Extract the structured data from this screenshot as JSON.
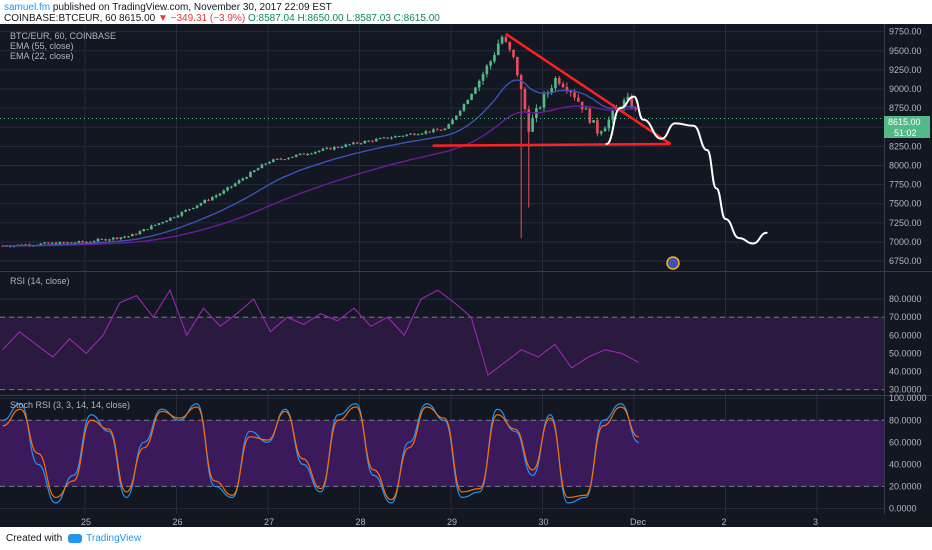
{
  "header": {
    "author": "samuel.fm",
    "published": " published on TradingView.com, November 30, 2017 22:09 EST",
    "symbol": "COINBASE:BTCEUR, 60",
    "last": "8615.00",
    "change": "▼ −349.31 (−3.9%)",
    "ohlc": {
      "o": "O:8587.04",
      "h": "H:8650.00",
      "l": "L:8587.03",
      "c": "C:8615.00"
    }
  },
  "legend": {
    "symbol": "BTC/EUR, 60, COINBASE",
    "ema55": "EMA (55, close)",
    "ema22": "EMA (22, close)",
    "rsi": "RSI (14, close)",
    "stoch": "Stoch RSI (3, 3, 14, 14, close)"
  },
  "footer": {
    "created": "Created with",
    "brand": "TradingView"
  },
  "colors": {
    "background": "#131722",
    "grid": "#262b3e",
    "up": "#53b987",
    "down": "#eb4d5c",
    "ema55": "#6a1b9a",
    "ema22": "#3f51b5",
    "rsi_line": "#9c27b0",
    "rsi_fill": "#2a1a3e",
    "stoch_k": "#2196f3",
    "stoch_d": "#ff6d00",
    "stoch_fill": "#3b1a5c",
    "trendline": "#ff2020",
    "drawing": "#ffffff",
    "price_badge": "#53b987"
  },
  "chart_data": [
    {
      "type": "candlestick",
      "title": "BTC/EUR, 60, COINBASE",
      "x_axis_ticks": [
        "25",
        "26",
        "27",
        "28",
        "29",
        "30",
        "Dec",
        "2",
        "3"
      ],
      "y_axis_ticks": [
        6750,
        7000,
        7250,
        7500,
        7750,
        8000,
        8250,
        8500,
        8750,
        9000,
        9250,
        9500,
        9750
      ],
      "ylim": [
        6620,
        9850
      ],
      "last_price_label": "8615.00",
      "countdown_label": "51:02",
      "dotted_price_level": 8615,
      "key_prices": {
        "start_24th": 6950,
        "close_27th": 8050,
        "close_28th": 8350,
        "peak_29th": 9700,
        "wick_low_29th": 7050,
        "close_30th": 8615
      },
      "indicators": [
        "EMA (55, close)",
        "EMA (22, close)"
      ],
      "annotations": [
        {
          "type": "descending-triangle",
          "upper_line": [
            [
              29.6,
              9720
            ],
            [
              31.4,
              8280
            ]
          ],
          "support": 8260
        },
        {
          "type": "freehand-projection",
          "end_price": 6970
        }
      ]
    },
    {
      "type": "line",
      "title": "RSI (14, close)",
      "y_axis_ticks": [
        30,
        40,
        50,
        60,
        70,
        80
      ],
      "ylim": [
        27,
        95
      ],
      "levels": [
        30,
        70
      ],
      "approx_values": [
        52,
        62,
        55,
        48,
        58,
        50,
        60,
        78,
        82,
        70,
        85,
        60,
        75,
        65,
        72,
        80,
        62,
        70,
        66,
        72,
        68,
        75,
        65,
        70,
        60,
        80,
        85,
        78,
        70,
        38,
        45,
        52,
        48,
        55,
        42,
        48,
        52,
        50,
        45
      ]
    },
    {
      "type": "line",
      "title": "Stoch RSI (3, 3, 14, 14, close)",
      "y_axis_ticks": [
        0,
        20,
        40,
        60,
        80,
        100
      ],
      "ylim": [
        -5,
        102
      ],
      "levels": [
        20,
        80
      ],
      "series": [
        {
          "name": "%K",
          "approx_values": [
            80,
            95,
            40,
            5,
            30,
            85,
            70,
            10,
            60,
            90,
            80,
            95,
            20,
            10,
            70,
            60,
            90,
            40,
            15,
            85,
            95,
            30,
            5,
            60,
            95,
            80,
            10,
            15,
            90,
            70,
            30,
            85,
            5,
            10,
            80,
            95,
            60
          ]
        },
        {
          "name": "%D",
          "approx_values": [
            75,
            90,
            50,
            10,
            25,
            80,
            72,
            15,
            55,
            88,
            82,
            92,
            25,
            12,
            65,
            62,
            88,
            45,
            18,
            80,
            92,
            35,
            8,
            55,
            92,
            82,
            15,
            18,
            85,
            72,
            35,
            82,
            10,
            12,
            75,
            92,
            65
          ]
        }
      ]
    }
  ]
}
